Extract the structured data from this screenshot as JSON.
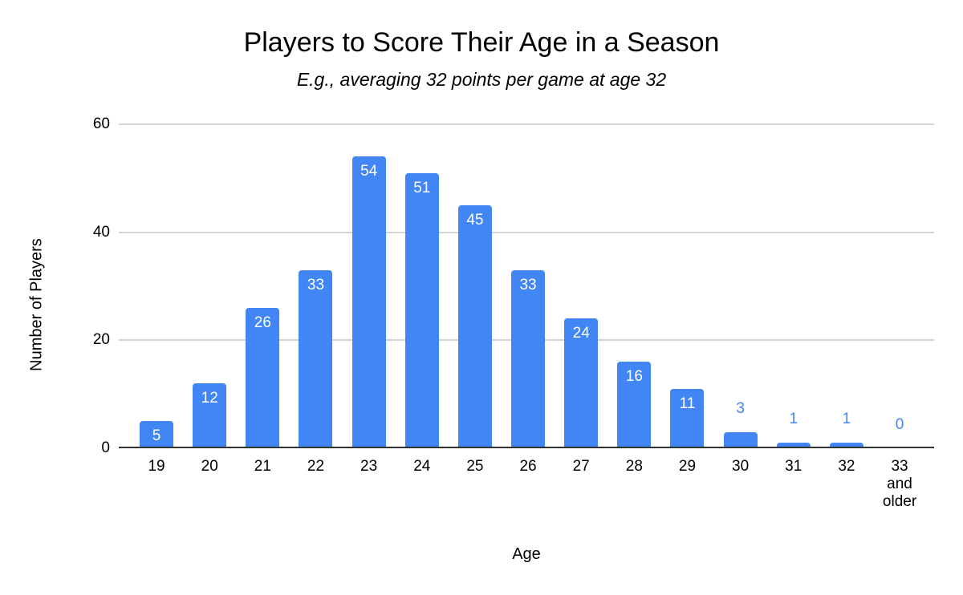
{
  "page": {
    "background": "#ffffff"
  },
  "chart_data": {
    "type": "bar",
    "title": "Players to Score Their Age in a Season",
    "subtitle": "E.g., averaging 32 points per game at age 32",
    "xlabel": "Age",
    "ylabel": "Number of Players",
    "categories": [
      "19",
      "20",
      "21",
      "22",
      "23",
      "24",
      "25",
      "26",
      "27",
      "28",
      "29",
      "30",
      "31",
      "32",
      "33 and older"
    ],
    "values": [
      5,
      12,
      26,
      33,
      54,
      51,
      45,
      33,
      24,
      16,
      11,
      3,
      1,
      1,
      0
    ],
    "yticks": [
      0,
      20,
      40,
      60
    ],
    "ylim": [
      0,
      60
    ],
    "grid": "horizontal-only",
    "legend_position": "none",
    "bar_color": "#4285f4",
    "value_label_inside_color": "#ffffff",
    "value_label_outside_color": "#4285f4",
    "inside_label_min_value": 5,
    "gridline_color": "#d5d5d5",
    "axis_line_color": "#333333"
  }
}
